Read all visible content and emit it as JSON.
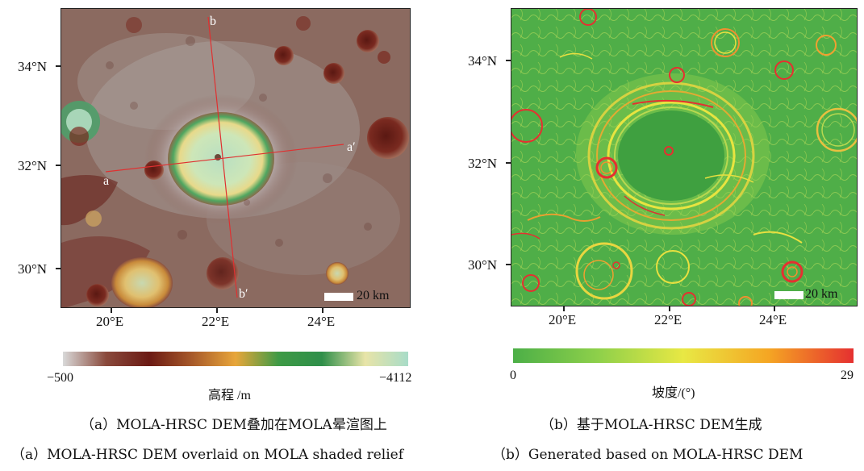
{
  "panel_a": {
    "lat_labels": [
      "34°N",
      "32°N",
      "30°N"
    ],
    "lon_labels": [
      "20°E",
      "22°E",
      "24°E"
    ],
    "scale_label": "20 km",
    "profile_labels": {
      "a": "a",
      "a_prime": "a′",
      "b": "b",
      "b_prime": "b′"
    },
    "colorbar": {
      "min": "−500",
      "max": "−4112",
      "title": "高程 /m",
      "colors": [
        "#d9d9d9",
        "#8a4a3c",
        "#6b1a14",
        "#a85a2a",
        "#e8a63a",
        "#3e9a46",
        "#2f8f4a",
        "#e8e4a8",
        "#a8dcc8"
      ]
    },
    "caption_cn": "（a）MOLA-HRSC DEM叠加在MOLA晕渲图上",
    "caption_en": "（a）MOLA-HRSC DEM overlaid on MOLA shaded relief"
  },
  "panel_b": {
    "lat_labels": [
      "34°N",
      "32°N",
      "30°N"
    ],
    "lon_labels": [
      "20°E",
      "22°E",
      "24°E"
    ],
    "scale_label": "20 km",
    "colorbar": {
      "min": "0",
      "max": "29",
      "title": "坡度/(°)",
      "colors": [
        "#4caf47",
        "#8ed04a",
        "#e8e844",
        "#f5a623",
        "#e53030"
      ]
    },
    "caption_cn": "（b）基于MOLA-HRSC DEM生成",
    "caption_en": "（b）Generated based on MOLA-HRSC DEM"
  }
}
